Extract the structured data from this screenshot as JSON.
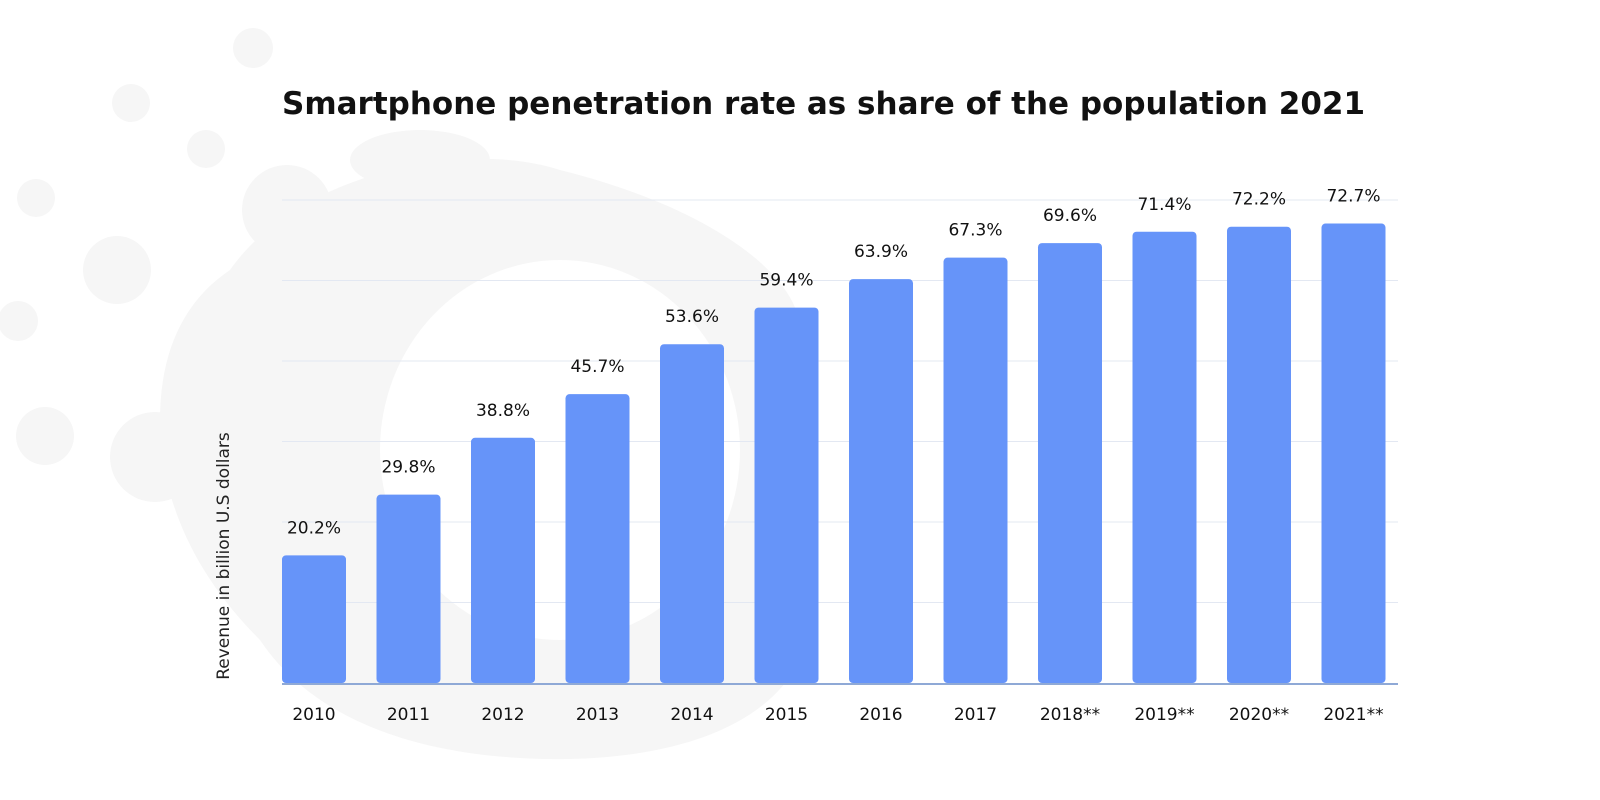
{
  "chart_data": {
    "type": "bar",
    "title": "Smartphone penetration rate as share of the population 2021",
    "ylabel": "Revenue in billion U.S dollars",
    "xlabel": "",
    "categories": [
      "2010",
      "2011",
      "2012",
      "2013",
      "2014",
      "2015",
      "2016",
      "2017",
      "2018**",
      "2019**",
      "2020**",
      "2021**"
    ],
    "values": [
      20.2,
      29.8,
      38.8,
      45.7,
      53.6,
      59.4,
      63.9,
      67.3,
      69.6,
      71.4,
      72.2,
      72.7
    ],
    "value_labels": [
      "20.2%",
      "29.8%",
      "38.8%",
      "45.7%",
      "53.6%",
      "59.4%",
      "63.9%",
      "67.3%",
      "69.6%",
      "71.4%",
      "72.2%",
      "72.7%"
    ],
    "ylim": [
      0,
      75
    ],
    "grid": true,
    "bar_color": "#6694f9"
  }
}
